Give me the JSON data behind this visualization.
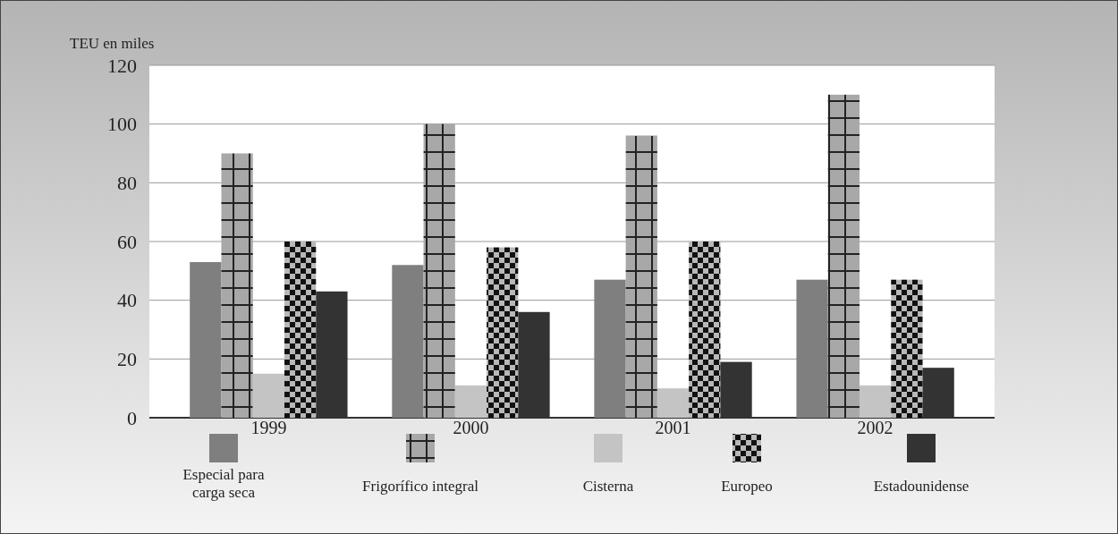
{
  "chart_data": {
    "type": "bar",
    "ylabel": "TEU en miles",
    "categories": [
      "1999",
      "2000",
      "2001",
      "2002"
    ],
    "series": [
      {
        "name": "Especial para carga seca",
        "color": "#7f7f7f",
        "values": [
          53,
          52,
          47,
          47
        ]
      },
      {
        "name": "Frigorífico integral",
        "color": "#a8a8a8",
        "values": [
          90,
          100,
          96,
          110
        ]
      },
      {
        "name": "Cisterna",
        "color": "#c4c4c4",
        "values": [
          15,
          11,
          10,
          11
        ]
      },
      {
        "name": "Europeo",
        "color": "#b8b8b8",
        "values": [
          60,
          58,
          60,
          47
        ]
      },
      {
        "name": "Estadounidense",
        "color": "#333333",
        "values": [
          43,
          36,
          19,
          17
        ]
      }
    ],
    "ylim": [
      0,
      120
    ],
    "yticks": [
      0,
      20,
      40,
      60,
      80,
      100,
      120
    ],
    "grid": "y",
    "legend": "bottom"
  }
}
